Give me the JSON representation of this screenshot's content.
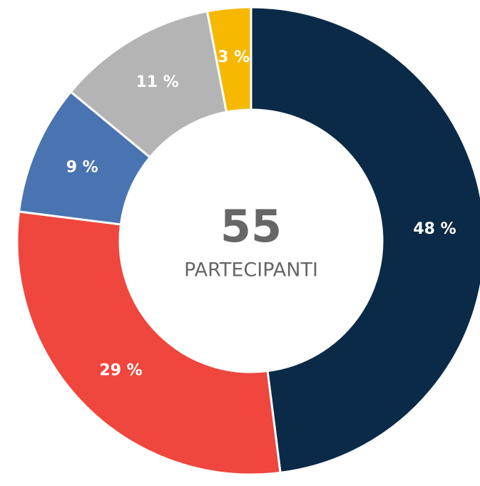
{
  "chart_data": {
    "type": "donut",
    "center_value": 55,
    "center_label": "PARTECIPANTI",
    "values": [
      48,
      29,
      9,
      11,
      3
    ],
    "value_labels": [
      "48 %",
      "29 %",
      "9 %",
      "11 %",
      "3 %"
    ],
    "colors": [
      "#0b2a48",
      "#ef463d",
      "#4a73b2",
      "#b4b4b4",
      "#f6b800"
    ]
  }
}
